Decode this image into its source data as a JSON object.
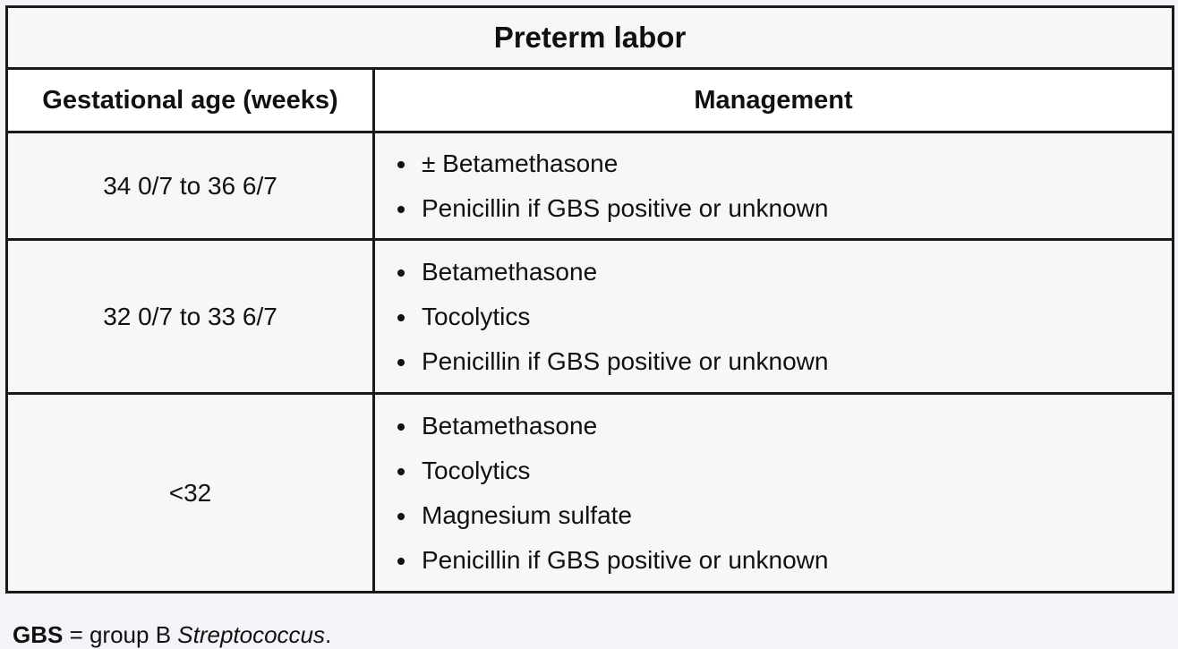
{
  "table": {
    "title": "Preterm labor",
    "headers": {
      "age": "Gestational age (weeks)",
      "management": "Management"
    },
    "rows": [
      {
        "age": "34 0/7 to 36 6/7",
        "items": [
          "± Betamethasone",
          "Penicillin if GBS positive or unknown"
        ]
      },
      {
        "age": "32 0/7 to 33 6/7",
        "items": [
          "Betamethasone",
          "Tocolytics",
          "Penicillin if GBS positive or unknown"
        ]
      },
      {
        "age": "<32",
        "items": [
          "Betamethasone",
          "Tocolytics",
          "Magnesium sulfate",
          "Penicillin if GBS positive or unknown"
        ]
      }
    ]
  },
  "footnote": {
    "abbr": "GBS",
    "equals": " = group B ",
    "organism": "Streptococcus",
    "end": "."
  }
}
